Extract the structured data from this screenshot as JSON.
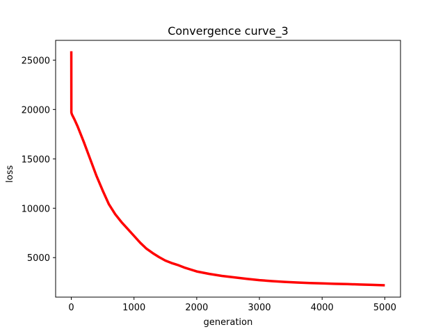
{
  "chart_data": {
    "type": "line",
    "title": "Convergence curve_3",
    "xlabel": "generation",
    "ylabel": "loss",
    "xlim": [
      -250,
      5250
    ],
    "ylim": [
      1000,
      27000
    ],
    "xticks": [
      0,
      1000,
      2000,
      3000,
      4000,
      5000
    ],
    "yticks": [
      5000,
      10000,
      15000,
      20000,
      25000
    ],
    "grid": false,
    "legend": "none",
    "series": [
      {
        "color": "#ff0000",
        "x": [
          0,
          1,
          10,
          50,
          100,
          200,
          300,
          400,
          500,
          600,
          700,
          800,
          900,
          1000,
          1100,
          1200,
          1300,
          1400,
          1500,
          1600,
          1700,
          1800,
          1900,
          2000,
          2200,
          2400,
          2600,
          2800,
          3000,
          3200,
          3400,
          3600,
          3800,
          4000,
          4200,
          4400,
          4600,
          4800,
          5000
        ],
        "y": [
          25900,
          19700,
          19500,
          19000,
          18300,
          16700,
          15000,
          13300,
          11800,
          10400,
          9400,
          8600,
          7900,
          7200,
          6500,
          5900,
          5450,
          5050,
          4700,
          4450,
          4250,
          4000,
          3800,
          3600,
          3350,
          3150,
          3000,
          2850,
          2720,
          2620,
          2540,
          2480,
          2430,
          2390,
          2350,
          2320,
          2280,
          2240,
          2200
        ]
      }
    ]
  }
}
